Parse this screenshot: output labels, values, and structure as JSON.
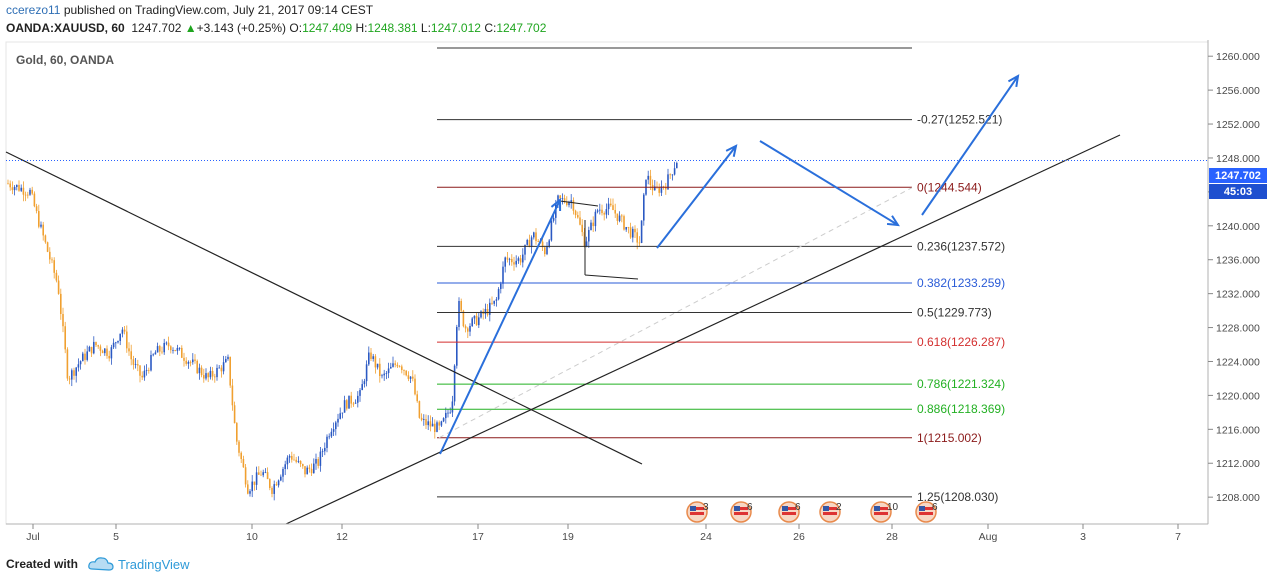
{
  "header": {
    "author": "ccerezo11",
    "published_text": "published on TradingView.com, July 21, 2017 09:14 CEST",
    "symbol": "OANDA:XAUUSD, 60",
    "last_price": "1247.702",
    "change": "+3.143 (+0.25%)",
    "open_label": "O:",
    "open": "1247.409",
    "high_label": "H:",
    "high": "1248.381",
    "low_label": "L:",
    "low": "1247.012",
    "close_label": "C:",
    "close": "1247.702"
  },
  "footer": {
    "created_with": "Created with",
    "brand": "TradingView"
  },
  "colors": {
    "candle_up": "#2b59c3",
    "candle_down": "#f0a030",
    "arrow": "#2a6fdb",
    "trend": "#222222",
    "price_line": "#2962ff"
  },
  "chart_data": {
    "type": "candlestick",
    "title": "Gold, 60, OANDA",
    "yticks": [
      "1208.000",
      "1212.000",
      "1216.000",
      "1220.000",
      "1224.000",
      "1228.000",
      "1232.000",
      "1236.000",
      "1240.000",
      "1244.000",
      "1248.000",
      "1252.000",
      "1256.000",
      "1260.000"
    ],
    "xticks": [
      "Jul",
      "5",
      "10",
      "12",
      "17",
      "19",
      "24",
      "26",
      "28",
      "Aug",
      "3",
      "7"
    ],
    "last_price_label": "1247.702",
    "countdown": "45:03",
    "fib_levels": [
      {
        "label": "-0.27(1252.521)",
        "price": 1252.521,
        "color": "#333333"
      },
      {
        "label": "0(1244.544)",
        "price": 1244.544,
        "color": "#8b1a1a"
      },
      {
        "label": "0.236(1237.572)",
        "price": 1237.572,
        "color": "#333333"
      },
      {
        "label": "0.382(1233.259)",
        "price": 1233.259,
        "color": "#2a5bd7"
      },
      {
        "label": "0.5(1229.773)",
        "price": 1229.773,
        "color": "#333333"
      },
      {
        "label": "0.618(1226.287)",
        "price": 1226.287,
        "color": "#d32f2f"
      },
      {
        "label": "0.786(1221.324)",
        "price": 1221.324,
        "color": "#22b022"
      },
      {
        "label": "0.886(1218.369)",
        "price": 1218.369,
        "color": "#22b022"
      },
      {
        "label": "1(1215.002)",
        "price": 1215.002,
        "color": "#8b1a1a"
      },
      {
        "label": "1.25(1208.030)",
        "price": 1208.03,
        "color": "#333333"
      }
    ],
    "event_counts": [
      "3",
      "6",
      "6",
      "2",
      "10",
      "6"
    ]
  }
}
